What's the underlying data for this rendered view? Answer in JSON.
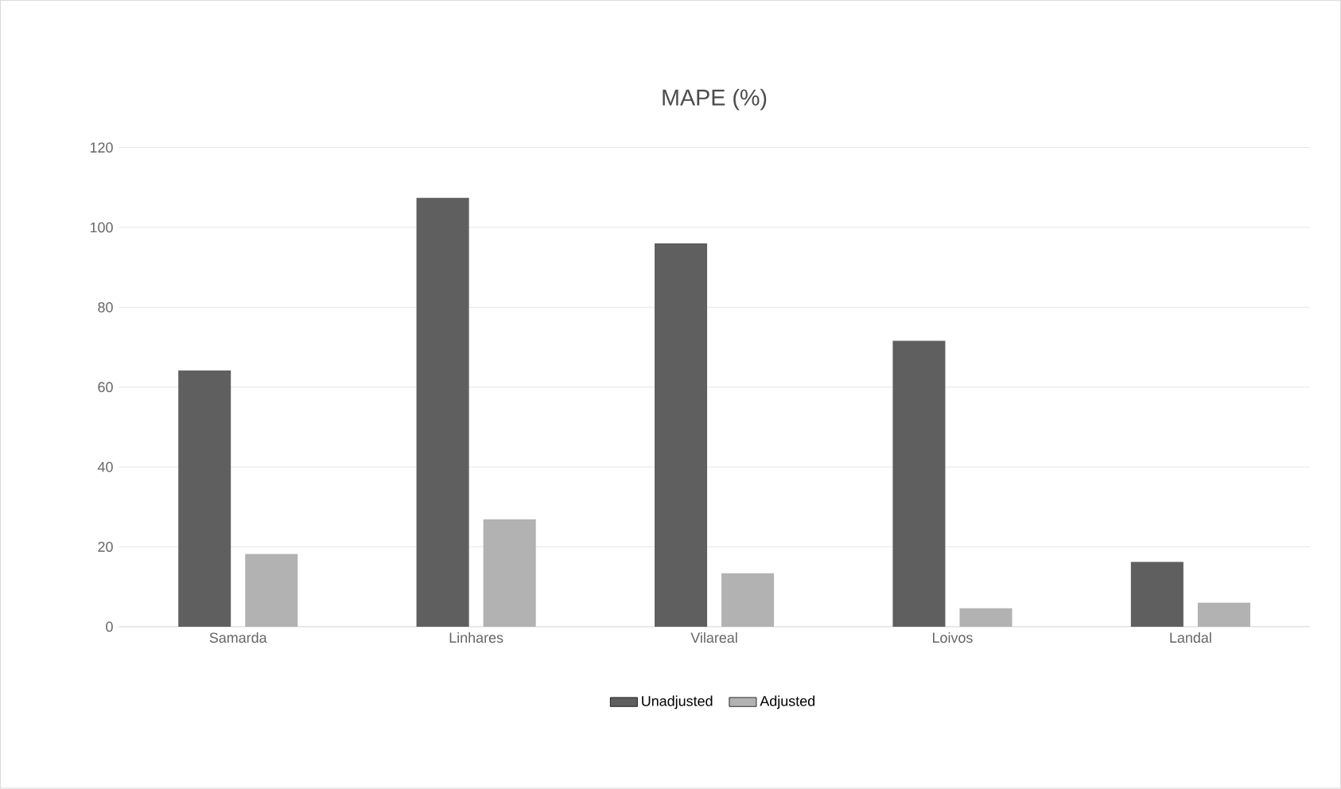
{
  "chart_data": {
    "type": "bar",
    "title": "MAPE (%)",
    "categories": [
      "Samarda",
      "Linhares",
      "Vilareal",
      "Loivos",
      "Landal"
    ],
    "series": [
      {
        "name": "Unadjusted",
        "color": "#5f5f5f",
        "values": [
          64.2,
          107.4,
          96.0,
          71.6,
          16.2
        ]
      },
      {
        "name": "Adjusted",
        "color": "#b2b2b2",
        "values": [
          18.2,
          26.9,
          13.4,
          4.6,
          6.0
        ]
      }
    ],
    "ylim": [
      0,
      120
    ],
    "yticks": [
      0,
      20,
      40,
      60,
      80,
      100,
      120
    ],
    "grid": "y",
    "legend": "bottom"
  }
}
